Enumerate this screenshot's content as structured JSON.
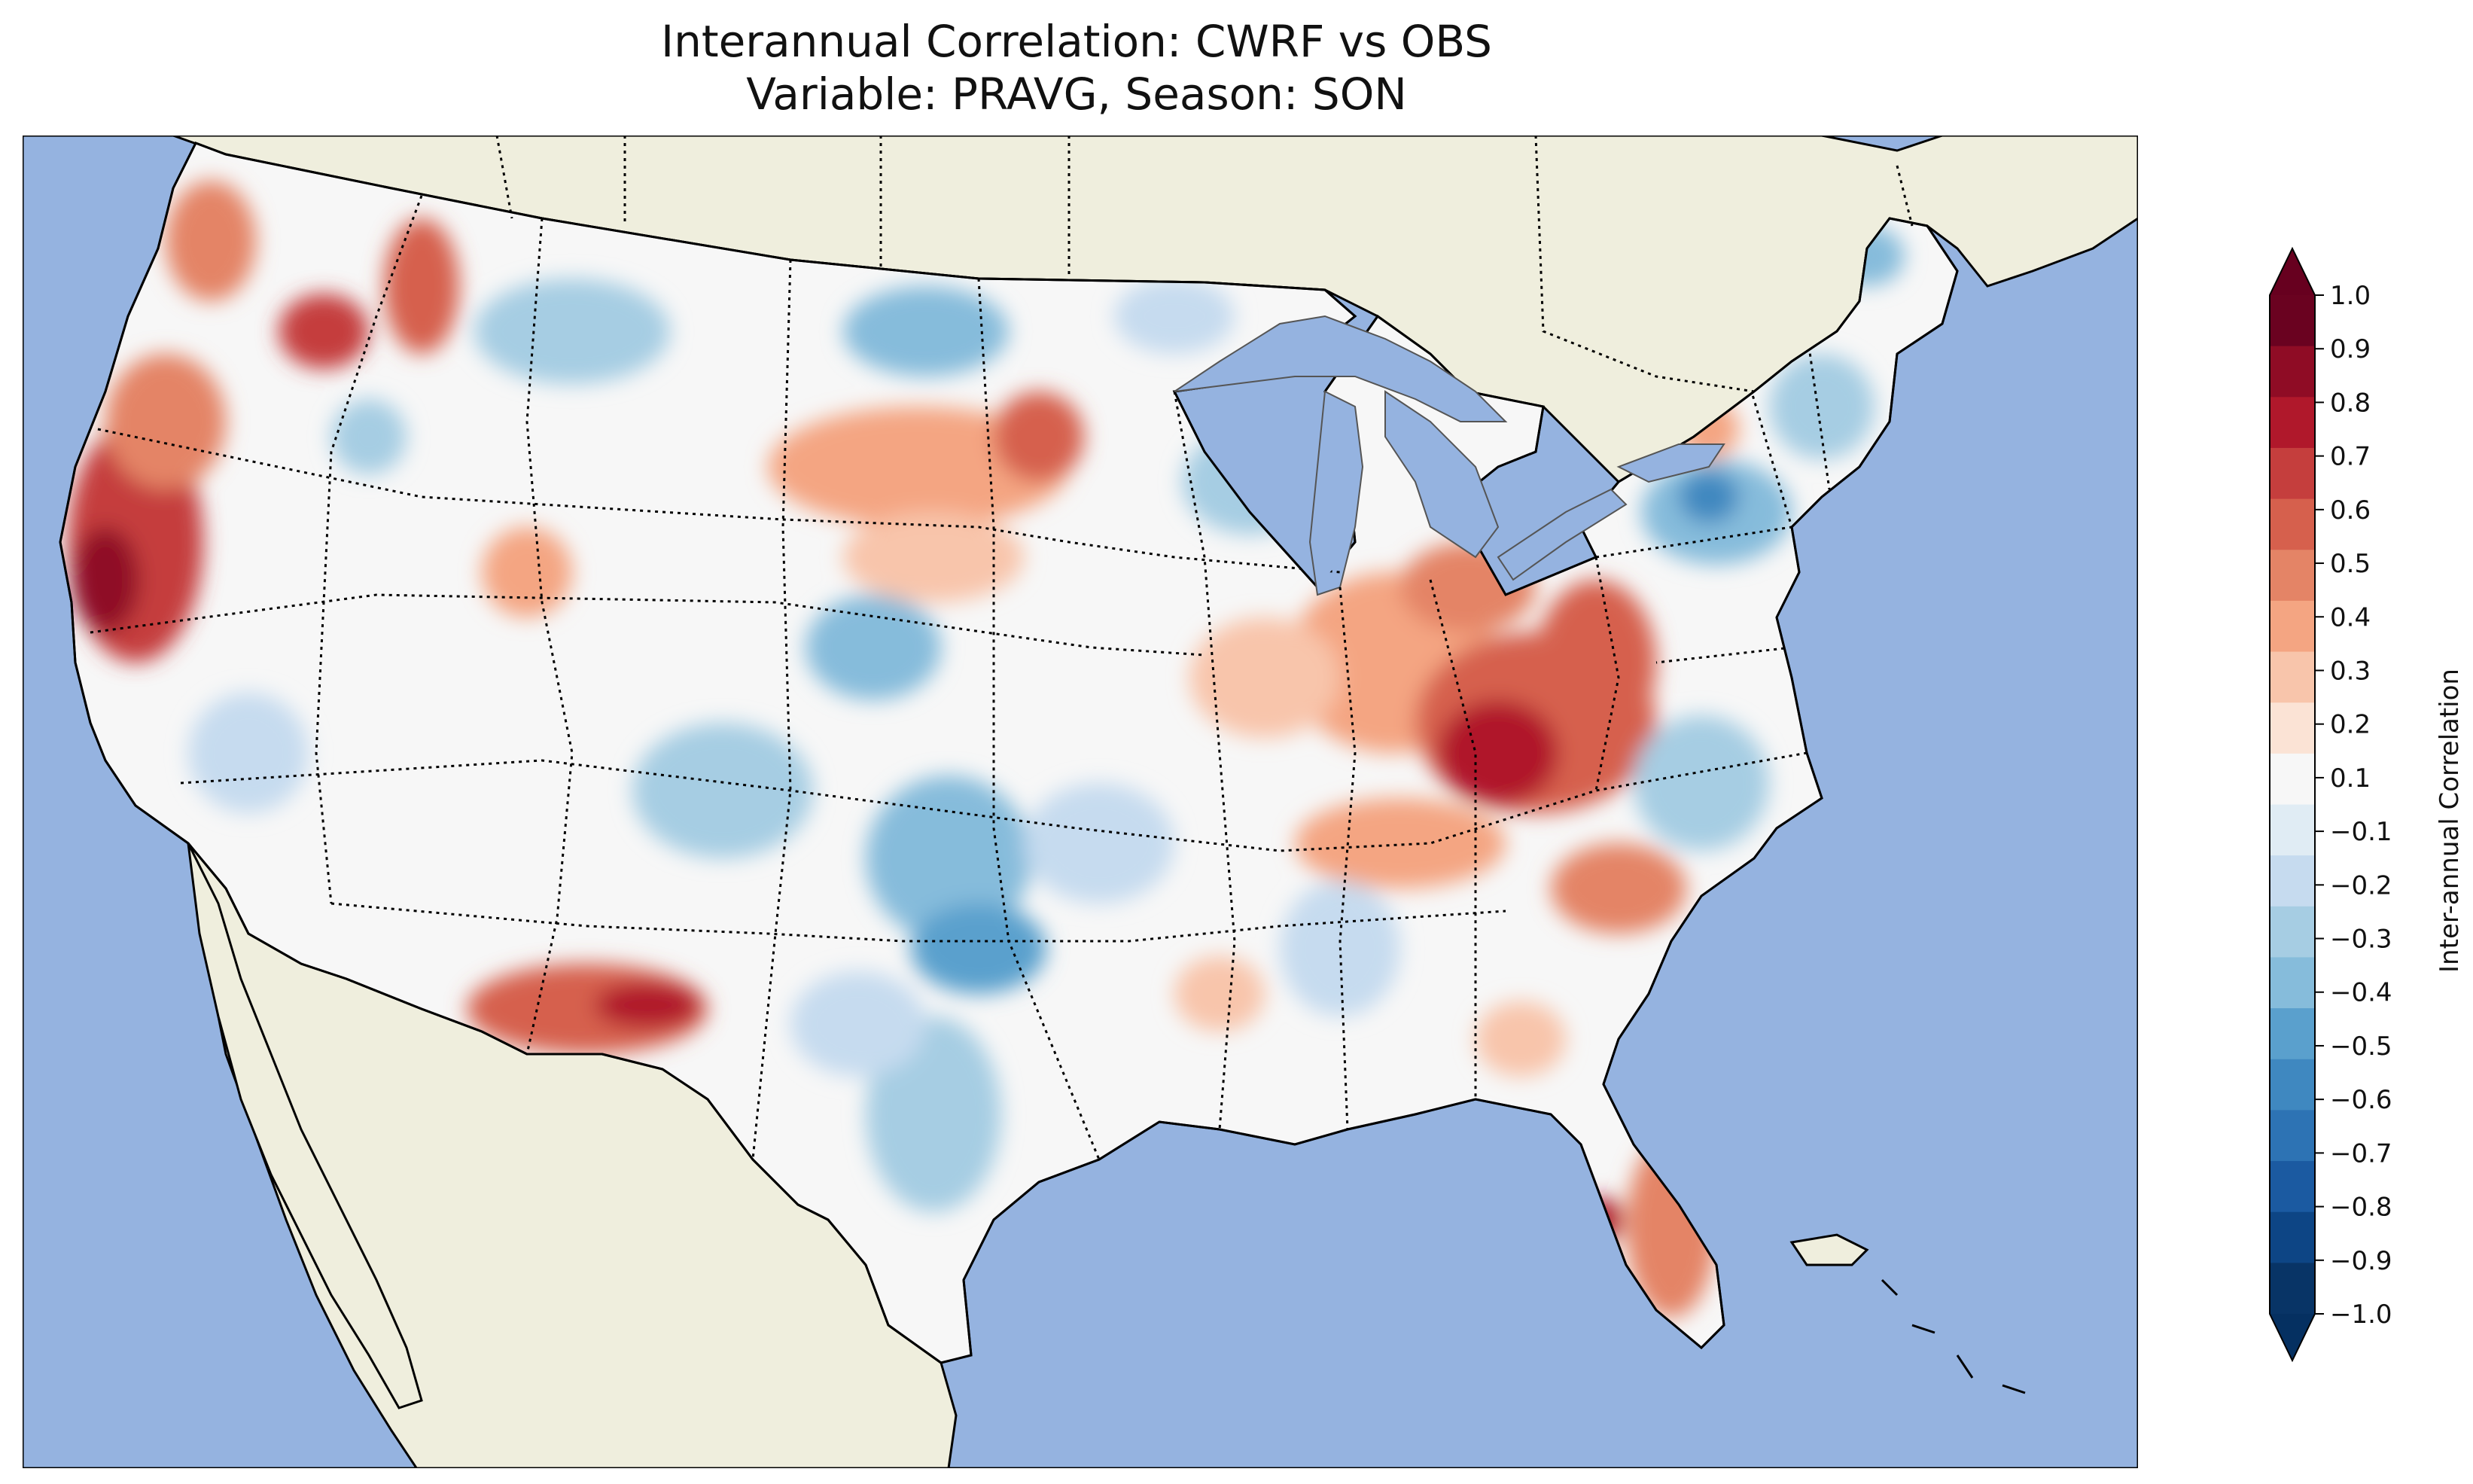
{
  "title": {
    "line1": "Interannual Correlation: CWRF vs OBS",
    "line2": "Variable: PRAVG, Season: SON"
  },
  "colorbar": {
    "label": "Inter-annual Correlation",
    "ticks": [
      "1.0",
      "0.9",
      "0.8",
      "0.7",
      "0.6",
      "0.5",
      "0.4",
      "0.3",
      "0.2",
      "0.1",
      "−0.1",
      "−0.2",
      "−0.3",
      "−0.4",
      "−0.5",
      "−0.6",
      "−0.7",
      "−0.8",
      "−0.9",
      "−1.0"
    ],
    "levels": [
      1.0,
      0.9,
      0.8,
      0.7,
      0.6,
      0.5,
      0.4,
      0.3,
      0.2,
      0.1,
      -0.1,
      -0.2,
      -0.3,
      -0.4,
      -0.5,
      -0.6,
      -0.7,
      -0.8,
      -0.9,
      -1.0
    ],
    "colors": [
      "#6a0220",
      "#8f0c25",
      "#b0182b",
      "#c53e3d",
      "#d6604d",
      "#e48466",
      "#f4a582",
      "#f8c5ab",
      "#fbe3d5",
      "#f7f7f7",
      "#e0ecf4",
      "#c6dbef",
      "#a6cde3",
      "#86bcdb",
      "#5aa0cd",
      "#3f88c0",
      "#2d73b4",
      "#1b5aa1",
      "#0d4585",
      "#083466"
    ],
    "extend_max_color": "#67001f",
    "extend_min_color": "#053061"
  },
  "map": {
    "ocean_color": "#95b3e0",
    "land_color": "#efeedd",
    "lake_color": "#95b3e0"
  }
}
